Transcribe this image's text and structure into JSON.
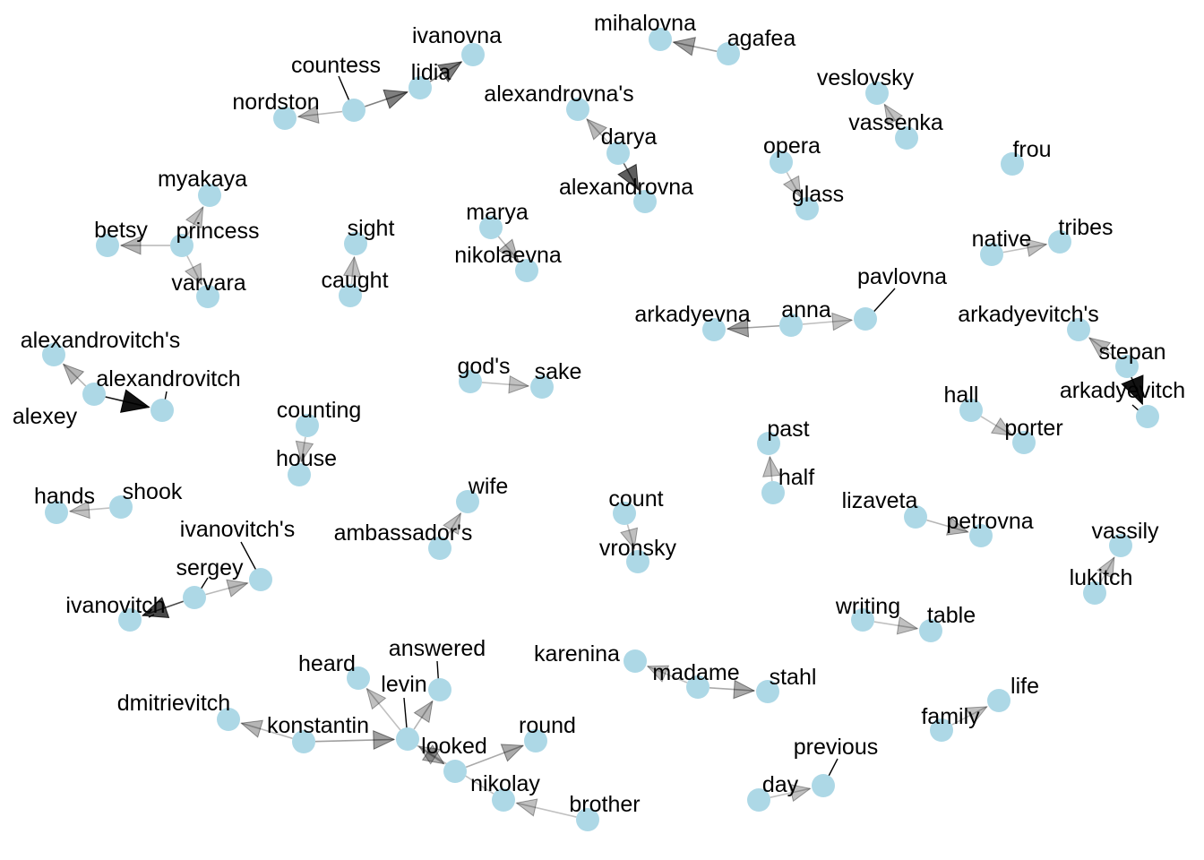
{
  "graph": {
    "type": "directed-bigram-network",
    "node_color": "#add8e6",
    "edge_color": "#000000",
    "nodes": [
      {
        "id": "ivanovna",
        "label": "ivanovna"
      },
      {
        "id": "lidia",
        "label": "lidia"
      },
      {
        "id": "countess",
        "label": "countess"
      },
      {
        "id": "nordston",
        "label": "nordston"
      },
      {
        "id": "mihalovna",
        "label": "mihalovna"
      },
      {
        "id": "agafea",
        "label": "agafea"
      },
      {
        "id": "alexandrovnas",
        "label": "alexandrovna's"
      },
      {
        "id": "darya",
        "label": "darya"
      },
      {
        "id": "alexandrovna",
        "label": "alexandrovna"
      },
      {
        "id": "veslovsky",
        "label": "veslovsky"
      },
      {
        "id": "vassenka",
        "label": "vassenka"
      },
      {
        "id": "opera",
        "label": "opera"
      },
      {
        "id": "glass",
        "label": "glass"
      },
      {
        "id": "frou",
        "label": "frou"
      },
      {
        "id": "myakaya",
        "label": "myakaya"
      },
      {
        "id": "betsy",
        "label": "betsy"
      },
      {
        "id": "princess",
        "label": "princess"
      },
      {
        "id": "varvara",
        "label": "varvara"
      },
      {
        "id": "sight",
        "label": "sight"
      },
      {
        "id": "caught",
        "label": "caught"
      },
      {
        "id": "marya",
        "label": "marya"
      },
      {
        "id": "nikolaevna",
        "label": "nikolaevna"
      },
      {
        "id": "native",
        "label": "native"
      },
      {
        "id": "tribes",
        "label": "tribes"
      },
      {
        "id": "pavlovna",
        "label": "pavlovna"
      },
      {
        "id": "anna",
        "label": "anna"
      },
      {
        "id": "arkadyevna",
        "label": "arkadyevna"
      },
      {
        "id": "arkadyevitchs",
        "label": "arkadyevitch's"
      },
      {
        "id": "stepan",
        "label": "stepan"
      },
      {
        "id": "arkadyevitch",
        "label": "arkadyevitch"
      },
      {
        "id": "alexandrovitchs",
        "label": "alexandrovitch's"
      },
      {
        "id": "alexandrovitch",
        "label": "alexandrovitch"
      },
      {
        "id": "alexey",
        "label": "alexey"
      },
      {
        "id": "gods",
        "label": "god's"
      },
      {
        "id": "sake",
        "label": "sake"
      },
      {
        "id": "counting",
        "label": "counting"
      },
      {
        "id": "house",
        "label": "house"
      },
      {
        "id": "hall",
        "label": "hall"
      },
      {
        "id": "porter",
        "label": "porter"
      },
      {
        "id": "past",
        "label": "past"
      },
      {
        "id": "half",
        "label": "half"
      },
      {
        "id": "hands",
        "label": "hands"
      },
      {
        "id": "shook",
        "label": "shook"
      },
      {
        "id": "wife",
        "label": "wife"
      },
      {
        "id": "ambassadors",
        "label": "ambassador's"
      },
      {
        "id": "count",
        "label": "count"
      },
      {
        "id": "vronsky",
        "label": "vronsky"
      },
      {
        "id": "lizaveta",
        "label": "lizaveta"
      },
      {
        "id": "petrovna",
        "label": "petrovna"
      },
      {
        "id": "vassily",
        "label": "vassily"
      },
      {
        "id": "lukitch",
        "label": "lukitch"
      },
      {
        "id": "ivanovitchs",
        "label": "ivanovitch's"
      },
      {
        "id": "sergey",
        "label": "sergey"
      },
      {
        "id": "ivanovitch",
        "label": "ivanovitch"
      },
      {
        "id": "writing",
        "label": "writing"
      },
      {
        "id": "table",
        "label": "table"
      },
      {
        "id": "heard",
        "label": "heard"
      },
      {
        "id": "answered",
        "label": "answered"
      },
      {
        "id": "levin",
        "label": "levin"
      },
      {
        "id": "karenina",
        "label": "karenina"
      },
      {
        "id": "madame",
        "label": "madame"
      },
      {
        "id": "stahl",
        "label": "stahl"
      },
      {
        "id": "dmitrievitch",
        "label": "dmitrievitch"
      },
      {
        "id": "konstantin",
        "label": "konstantin"
      },
      {
        "id": "looked",
        "label": "looked"
      },
      {
        "id": "round",
        "label": "round"
      },
      {
        "id": "life",
        "label": "life"
      },
      {
        "id": "family",
        "label": "family"
      },
      {
        "id": "nikolay",
        "label": "nikolay"
      },
      {
        "id": "previous",
        "label": "previous"
      },
      {
        "id": "day",
        "label": "day"
      },
      {
        "id": "brother",
        "label": "brother"
      }
    ],
    "edges": [
      {
        "from": "lidia",
        "to": "ivanovna",
        "weight": 0.45
      },
      {
        "from": "countess",
        "to": "lidia",
        "weight": 0.45
      },
      {
        "from": "countess",
        "to": "nordston",
        "weight": 0.2
      },
      {
        "from": "agafea",
        "to": "mihalovna",
        "weight": 0.3
      },
      {
        "from": "darya",
        "to": "alexandrovnas",
        "weight": 0.18
      },
      {
        "from": "darya",
        "to": "alexandrovna",
        "weight": 0.6
      },
      {
        "from": "vassenka",
        "to": "veslovsky",
        "weight": 0.15
      },
      {
        "from": "opera",
        "to": "glass",
        "weight": 0.15
      },
      {
        "from": "princess",
        "to": "myakaya",
        "weight": 0.15
      },
      {
        "from": "princess",
        "to": "betsy",
        "weight": 0.2
      },
      {
        "from": "princess",
        "to": "varvara",
        "weight": 0.15
      },
      {
        "from": "caught",
        "to": "sight",
        "weight": 0.15
      },
      {
        "from": "marya",
        "to": "nikolaevna",
        "weight": 0.2
      },
      {
        "from": "native",
        "to": "tribes",
        "weight": 0.15
      },
      {
        "from": "anna",
        "to": "pavlovna",
        "weight": 0.15
      },
      {
        "from": "anna",
        "to": "arkadyevna",
        "weight": 0.3
      },
      {
        "from": "stepan",
        "to": "arkadyevitchs",
        "weight": 0.18
      },
      {
        "from": "stepan",
        "to": "arkadyevitch",
        "weight": 0.95
      },
      {
        "from": "alexey",
        "to": "alexandrovitchs",
        "weight": 0.2
      },
      {
        "from": "alexey",
        "to": "alexandrovitch",
        "weight": 0.95
      },
      {
        "from": "gods",
        "to": "sake",
        "weight": 0.15
      },
      {
        "from": "counting",
        "to": "house",
        "weight": 0.15
      },
      {
        "from": "hall",
        "to": "porter",
        "weight": 0.15
      },
      {
        "from": "half",
        "to": "past",
        "weight": 0.15
      },
      {
        "from": "shook",
        "to": "hands",
        "weight": 0.15
      },
      {
        "from": "ambassadors",
        "to": "wife",
        "weight": 0.15
      },
      {
        "from": "count",
        "to": "vronsky",
        "weight": 0.15
      },
      {
        "from": "lizaveta",
        "to": "petrovna",
        "weight": 0.2
      },
      {
        "from": "lukitch",
        "to": "vassily",
        "weight": 0.15
      },
      {
        "from": "sergey",
        "to": "ivanovitchs",
        "weight": 0.18
      },
      {
        "from": "sergey",
        "to": "ivanovitch",
        "weight": 0.7
      },
      {
        "from": "writing",
        "to": "table",
        "weight": 0.15
      },
      {
        "from": "levin",
        "to": "heard",
        "weight": 0.15
      },
      {
        "from": "levin",
        "to": "answered",
        "weight": 0.2
      },
      {
        "from": "levin",
        "to": "looked",
        "weight": 0.22
      },
      {
        "from": "madame",
        "to": "karenina",
        "weight": 0.15
      },
      {
        "from": "madame",
        "to": "stahl",
        "weight": 0.25
      },
      {
        "from": "konstantin",
        "to": "dmitrievitch",
        "weight": 0.2
      },
      {
        "from": "konstantin",
        "to": "levin",
        "weight": 0.3
      },
      {
        "from": "looked",
        "to": "round",
        "weight": 0.25
      },
      {
        "from": "family",
        "to": "life",
        "weight": 0.15
      },
      {
        "from": "nikolay",
        "to": "levin",
        "weight": 0.15
      },
      {
        "from": "day",
        "to": "previous",
        "weight": 0.15
      },
      {
        "from": "brother",
        "to": "nikolay",
        "weight": 0.15
      }
    ]
  }
}
